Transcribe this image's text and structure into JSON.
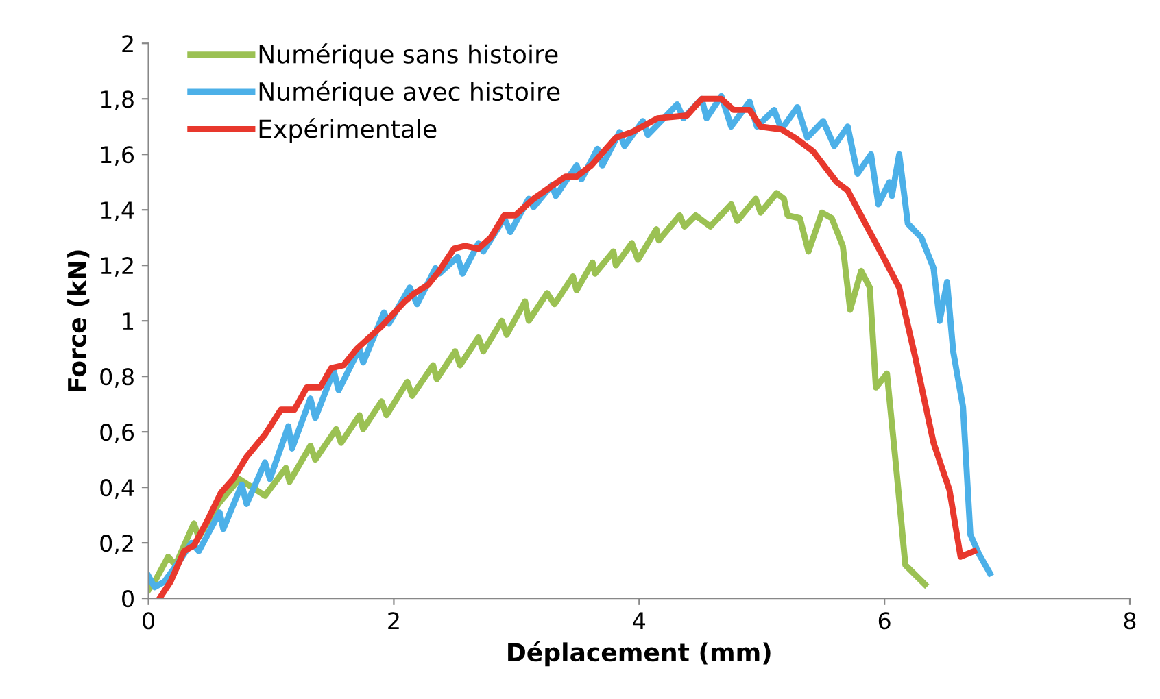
{
  "chart_data": {
    "type": "line",
    "xlabel": "Déplacement (mm)",
    "ylabel": "Force (kN)",
    "xlim": [
      0,
      8
    ],
    "xticks": [
      0,
      2,
      4,
      6,
      8
    ],
    "ylim": [
      0,
      2
    ],
    "yticks": [
      0,
      {
        "value": 0.2,
        "label": "0,2"
      },
      {
        "value": 0.4,
        "label": "0,4"
      },
      {
        "value": 0.6,
        "label": "0,6"
      },
      {
        "value": 0.8,
        "label": "0,8"
      },
      1,
      {
        "value": 1.2,
        "label": "1,2"
      },
      {
        "value": 1.4,
        "label": "1,4"
      },
      {
        "value": 1.6,
        "label": "1,6"
      },
      {
        "value": 1.8,
        "label": "1,8"
      },
      2
    ],
    "grid": false,
    "legend": "top left",
    "marker": "none",
    "line_style": "solid",
    "series": [
      {
        "name": "Numérique sans histoire",
        "color": "#9bc153",
        "x": [
          0.0,
          0.05,
          0.16,
          0.22,
          0.37,
          0.41,
          0.57,
          0.74,
          0.95,
          1.12,
          1.15,
          1.32,
          1.36,
          1.53,
          1.57,
          1.72,
          1.75,
          1.9,
          1.94,
          2.11,
          2.15,
          2.32,
          2.35,
          2.5,
          2.54,
          2.69,
          2.73,
          2.88,
          2.92,
          3.07,
          3.1,
          3.25,
          3.31,
          3.46,
          3.49,
          3.62,
          3.64,
          3.79,
          3.81,
          3.94,
          3.99,
          4.14,
          4.16,
          4.33,
          4.37,
          4.46,
          4.58,
          4.75,
          4.8,
          4.95,
          4.99,
          5.12,
          5.18,
          5.21,
          5.31,
          5.38,
          5.49,
          5.57,
          5.66,
          5.72,
          5.81,
          5.88,
          5.93,
          6.02,
          6.1,
          6.17,
          6.33
        ],
        "values": [
          0.03,
          0.06,
          0.15,
          0.12,
          0.27,
          0.22,
          0.34,
          0.43,
          0.37,
          0.47,
          0.42,
          0.55,
          0.5,
          0.61,
          0.56,
          0.66,
          0.61,
          0.71,
          0.66,
          0.78,
          0.73,
          0.84,
          0.79,
          0.89,
          0.84,
          0.94,
          0.89,
          1.0,
          0.95,
          1.07,
          1.0,
          1.1,
          1.06,
          1.16,
          1.11,
          1.21,
          1.17,
          1.25,
          1.2,
          1.28,
          1.22,
          1.33,
          1.29,
          1.38,
          1.34,
          1.38,
          1.34,
          1.42,
          1.36,
          1.44,
          1.39,
          1.46,
          1.44,
          1.38,
          1.37,
          1.25,
          1.39,
          1.37,
          1.27,
          1.04,
          1.18,
          1.12,
          0.76,
          0.81,
          0.45,
          0.12,
          0.05
        ]
      },
      {
        "name": "Numérique avec histoire",
        "color": "#4cb0e8",
        "x": [
          0.0,
          0.05,
          0.13,
          0.26,
          0.35,
          0.41,
          0.58,
          0.61,
          0.76,
          0.8,
          0.95,
          0.99,
          1.14,
          1.17,
          1.32,
          1.36,
          1.51,
          1.55,
          1.72,
          1.75,
          1.92,
          1.96,
          2.13,
          2.19,
          2.34,
          2.37,
          2.52,
          2.56,
          2.69,
          2.73,
          2.9,
          2.95,
          3.1,
          3.14,
          3.29,
          3.32,
          3.49,
          3.53,
          3.66,
          3.7,
          3.84,
          3.88,
          4.03,
          4.07,
          4.31,
          4.36,
          4.51,
          4.55,
          4.67,
          4.75,
          4.9,
          4.96,
          5.1,
          5.16,
          5.29,
          5.37,
          5.5,
          5.59,
          5.7,
          5.78,
          5.89,
          5.95,
          6.04,
          6.06,
          6.12,
          6.19,
          6.3,
          6.4,
          6.45,
          6.51,
          6.56,
          6.64,
          6.7,
          6.77,
          6.86
        ],
        "values": [
          0.08,
          0.04,
          0.06,
          0.14,
          0.2,
          0.17,
          0.31,
          0.25,
          0.41,
          0.34,
          0.49,
          0.43,
          0.62,
          0.54,
          0.72,
          0.65,
          0.82,
          0.75,
          0.9,
          0.85,
          1.03,
          0.99,
          1.12,
          1.06,
          1.19,
          1.17,
          1.23,
          1.17,
          1.28,
          1.25,
          1.37,
          1.32,
          1.44,
          1.41,
          1.49,
          1.45,
          1.56,
          1.51,
          1.62,
          1.56,
          1.68,
          1.63,
          1.72,
          1.67,
          1.78,
          1.73,
          1.8,
          1.73,
          1.81,
          1.7,
          1.79,
          1.7,
          1.76,
          1.69,
          1.77,
          1.66,
          1.72,
          1.63,
          1.7,
          1.53,
          1.6,
          1.42,
          1.5,
          1.45,
          1.6,
          1.35,
          1.3,
          1.19,
          1.0,
          1.14,
          0.89,
          0.69,
          0.23,
          0.16,
          0.09
        ]
      },
      {
        "name": "Expérimentale",
        "color": "#e8382d",
        "x": [
          0.09,
          0.18,
          0.29,
          0.37,
          0.48,
          0.59,
          0.69,
          0.8,
          0.95,
          1.08,
          1.19,
          1.29,
          1.4,
          1.49,
          1.59,
          1.7,
          1.9,
          2.09,
          2.17,
          2.28,
          2.37,
          2.49,
          2.58,
          2.69,
          2.79,
          2.9,
          2.99,
          3.14,
          3.4,
          3.49,
          3.61,
          3.81,
          3.94,
          4.15,
          4.39,
          4.51,
          4.67,
          4.77,
          4.9,
          4.99,
          5.16,
          5.27,
          5.42,
          5.61,
          5.7,
          5.82,
          5.99,
          6.12,
          6.25,
          6.4,
          6.53,
          6.62,
          6.73
        ],
        "values": [
          0.0,
          0.06,
          0.17,
          0.19,
          0.28,
          0.38,
          0.43,
          0.51,
          0.59,
          0.68,
          0.68,
          0.76,
          0.76,
          0.83,
          0.84,
          0.9,
          0.98,
          1.07,
          1.1,
          1.13,
          1.18,
          1.26,
          1.27,
          1.26,
          1.3,
          1.38,
          1.38,
          1.44,
          1.52,
          1.52,
          1.56,
          1.66,
          1.68,
          1.73,
          1.74,
          1.8,
          1.8,
          1.76,
          1.76,
          1.7,
          1.69,
          1.66,
          1.61,
          1.5,
          1.47,
          1.37,
          1.23,
          1.12,
          0.87,
          0.56,
          0.39,
          0.15,
          0.17
        ]
      }
    ]
  }
}
